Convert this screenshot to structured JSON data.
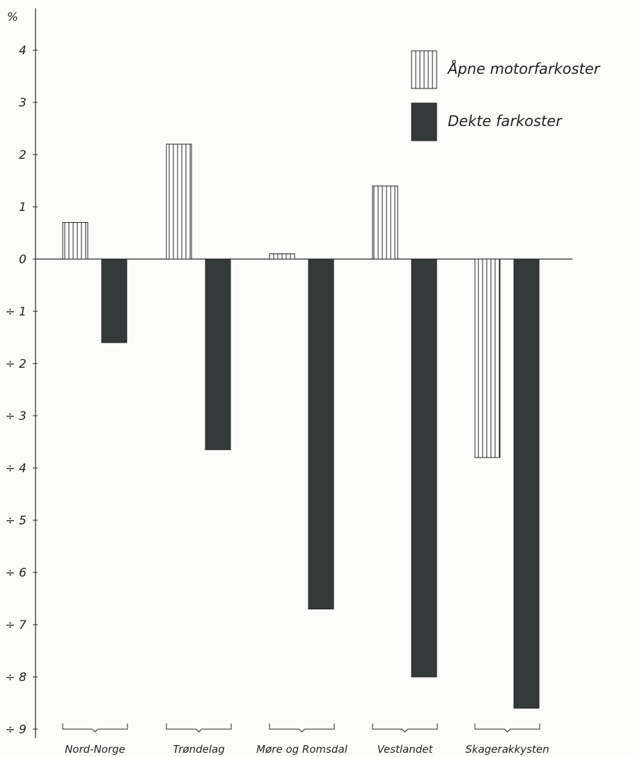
{
  "chart_data": {
    "type": "bar",
    "y_unit_label": "%",
    "categories": [
      "Nord-Norge",
      "Trøndelag",
      "Møre og Romsdal",
      "Vestlandet",
      "Skagerakkysten"
    ],
    "series": [
      {
        "name": "Åpne motorfarkoster",
        "values": [
          0.7,
          2.2,
          0.1,
          1.4,
          -3.8
        ],
        "pattern": "vertical-hatch",
        "color": "#ffffff"
      },
      {
        "name": "Dekte farkoster",
        "values": [
          -1.6,
          -3.65,
          -6.7,
          -8.0,
          -8.6
        ],
        "pattern": "solid",
        "color": "#35393a"
      }
    ],
    "ylim": [
      -9,
      4
    ],
    "yticks": [
      {
        "value": 4,
        "label": "4"
      },
      {
        "value": 3,
        "label": "3"
      },
      {
        "value": 2,
        "label": "2"
      },
      {
        "value": 1,
        "label": "1"
      },
      {
        "value": 0,
        "label": "0"
      },
      {
        "value": -1,
        "label": "÷ 1"
      },
      {
        "value": -2,
        "label": "÷ 2"
      },
      {
        "value": -3,
        "label": "÷ 3"
      },
      {
        "value": -4,
        "label": "÷ 4"
      },
      {
        "value": -5,
        "label": "÷ 5"
      },
      {
        "value": -6,
        "label": "÷ 6"
      },
      {
        "value": -7,
        "label": "÷ 7"
      },
      {
        "value": -8,
        "label": "÷ 8"
      },
      {
        "value": -9,
        "label": "÷ 9"
      }
    ],
    "legend_position": "top-right",
    "grid": false
  }
}
